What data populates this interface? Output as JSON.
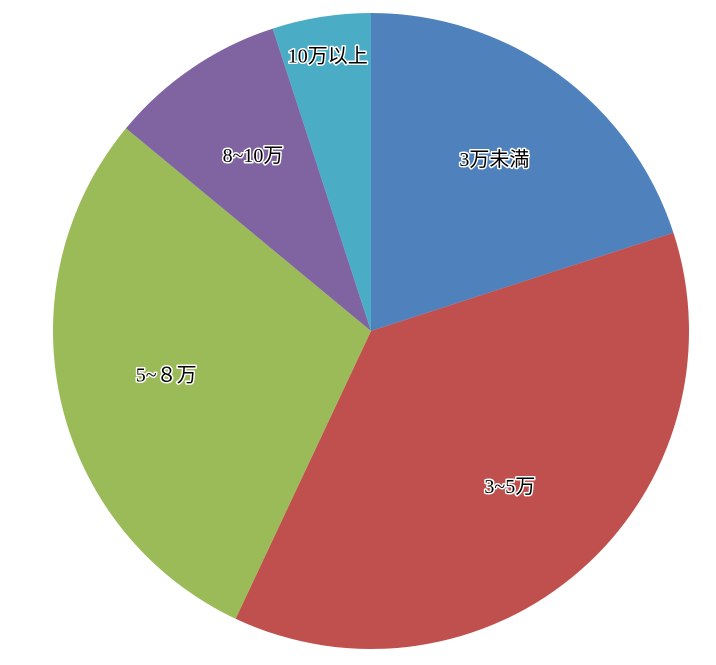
{
  "chart_data": {
    "type": "pie",
    "categories": [
      "3万未満",
      "3~5万",
      "5~８万",
      "8~10万",
      "10万以上"
    ],
    "values": [
      20,
      37,
      29,
      9,
      5
    ],
    "colors": [
      "#4f81bd",
      "#c0504d",
      "#9bbb59",
      "#8064a2",
      "#4bacc6"
    ]
  }
}
